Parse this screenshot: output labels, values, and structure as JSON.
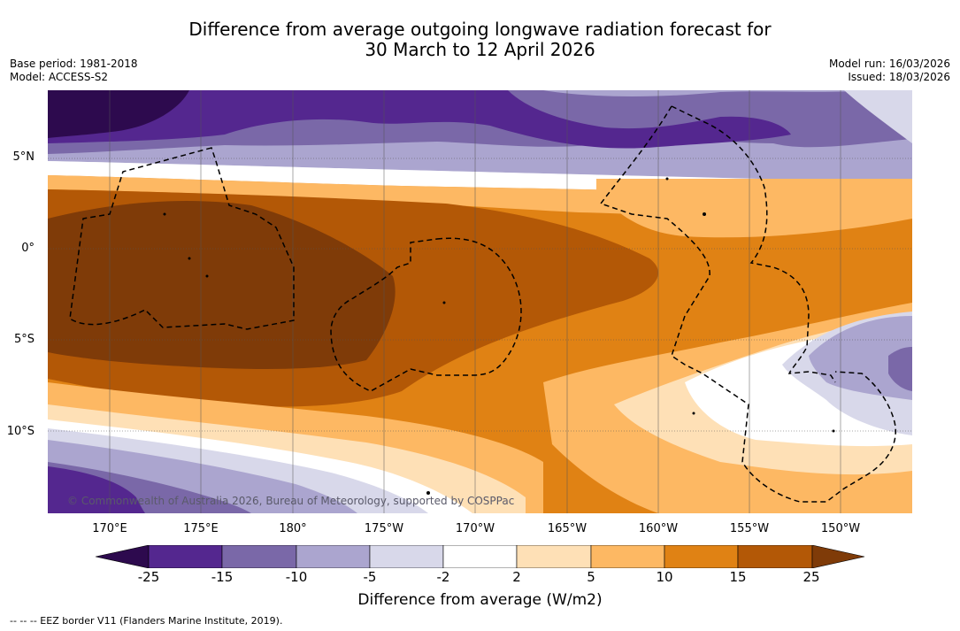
{
  "header": {
    "title_line1": "Difference from average outgoing longwave radiation forecast for",
    "title_line2": "30 March to 12 April 2026",
    "base_period": "Base period: 1981-2018",
    "model": "Model: ACCESS-S2",
    "model_run": "Model run: 16/03/2026",
    "issued": "Issued: 18/03/2026"
  },
  "map": {
    "lat_labels": [
      "5°N",
      "0°",
      "5°S",
      "10°S"
    ],
    "lon_labels": [
      "170°E",
      "175°E",
      "180°",
      "175°W",
      "170°W",
      "165°W",
      "160°W",
      "155°W",
      "150°W"
    ],
    "credit": "© Commonwealth of Australia 2026, Bureau of Meteorology, supported by COSPPac"
  },
  "colorbar": {
    "ticks": [
      "-25",
      "-15",
      "-10",
      "-5",
      "-2",
      "2",
      "5",
      "10",
      "15",
      "25"
    ],
    "title": "Difference from average (W/m2)",
    "colors": {
      "below_min": "#2d0a4e",
      "n25_15": "#54278f",
      "n15_10": "#7a68a8",
      "n10_5": "#aba5cf",
      "n5_2": "#d8d8ea",
      "n2_2": "#ffffff",
      "p2_5": "#fee0b6",
      "p5_10": "#fdb863",
      "p10_15": "#e08214",
      "p15_25": "#b35806",
      "above_max": "#7f3b08"
    }
  },
  "legend": {
    "eez": "--  --  -- EEZ border V11 (Flanders Marine Institute, 2019)."
  }
}
